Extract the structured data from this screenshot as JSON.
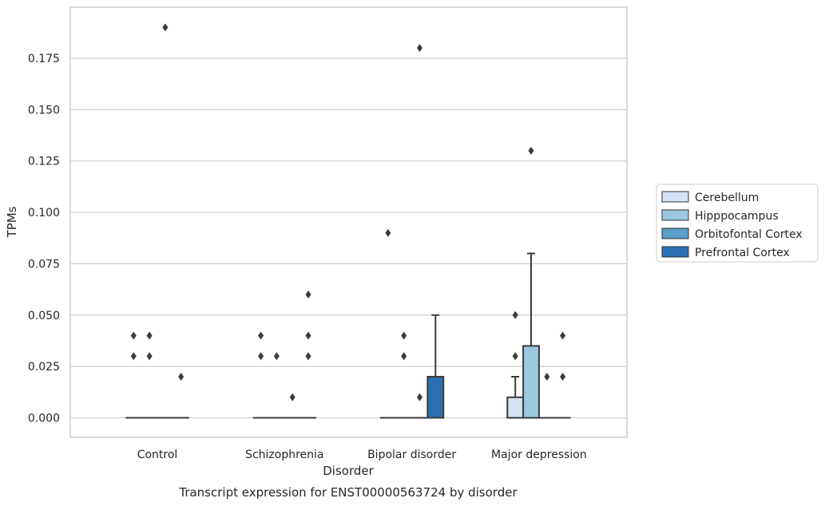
{
  "chart_data": {
    "type": "boxplot",
    "title": "",
    "caption": "Transcript expression for ENST00000563724 by disorder",
    "xlabel": "Disorder",
    "ylabel": "TPMs",
    "ylim": [
      -0.0095,
      0.1985
    ],
    "yticks": [
      0.0,
      0.025,
      0.05,
      0.075,
      0.1,
      0.125,
      0.15,
      0.175
    ],
    "ytick_labels": [
      "0.000",
      "0.025",
      "0.050",
      "0.075",
      "0.100",
      "0.125",
      "0.150",
      "0.175"
    ],
    "grid": "horizontal",
    "legend_position": "right",
    "categories": [
      "Control",
      "Schizophrenia",
      "Bipolar disorder",
      "Major depression"
    ],
    "series": [
      {
        "name": "Cerebellum",
        "color": "#d2e3f3",
        "boxes": [
          {
            "q1": 0,
            "median": 0,
            "q3": 0,
            "whislo": 0,
            "whishi": 0,
            "fliers": [
              0.03,
              0.04
            ]
          },
          {
            "q1": 0,
            "median": 0,
            "q3": 0,
            "whislo": 0,
            "whishi": 0,
            "fliers": [
              0.03,
              0.04
            ]
          },
          {
            "q1": 0,
            "median": 0,
            "q3": 0,
            "whislo": 0,
            "whishi": 0,
            "fliers": [
              0.09
            ]
          },
          {
            "q1": 0,
            "median": 0,
            "q3": 0.01,
            "whislo": 0,
            "whishi": 0.02,
            "fliers": [
              0.03,
              0.05
            ]
          }
        ]
      },
      {
        "name": "Hipppocampus",
        "color": "#9ac8e0",
        "boxes": [
          {
            "q1": 0,
            "median": 0,
            "q3": 0,
            "whislo": 0,
            "whishi": 0,
            "fliers": [
              0.03,
              0.04
            ]
          },
          {
            "q1": 0,
            "median": 0,
            "q3": 0,
            "whislo": 0,
            "whishi": 0,
            "fliers": [
              0.03
            ]
          },
          {
            "q1": 0,
            "median": 0,
            "q3": 0,
            "whislo": 0,
            "whishi": 0,
            "fliers": [
              0.03,
              0.04
            ]
          },
          {
            "q1": 0,
            "median": 0,
            "q3": 0.035,
            "whislo": 0,
            "whishi": 0.08,
            "fliers": [
              0.13
            ]
          }
        ]
      },
      {
        "name": "Orbitofontal Cortex",
        "color": "#5a9ec9",
        "boxes": [
          {
            "q1": 0,
            "median": 0,
            "q3": 0,
            "whislo": 0,
            "whishi": 0,
            "fliers": [
              0.19
            ]
          },
          {
            "q1": 0,
            "median": 0,
            "q3": 0,
            "whislo": 0,
            "whishi": 0,
            "fliers": [
              0.01
            ]
          },
          {
            "q1": 0,
            "median": 0,
            "q3": 0,
            "whislo": 0,
            "whishi": 0,
            "fliers": [
              0.01,
              0.18
            ]
          },
          {
            "q1": 0,
            "median": 0,
            "q3": 0,
            "whislo": 0,
            "whishi": 0,
            "fliers": [
              0.02
            ]
          }
        ]
      },
      {
        "name": "Prefrontal Cortex",
        "color": "#2c6fb0",
        "boxes": [
          {
            "q1": 0,
            "median": 0,
            "q3": 0,
            "whislo": 0,
            "whishi": 0,
            "fliers": [
              0.02
            ]
          },
          {
            "q1": 0,
            "median": 0,
            "q3": 0,
            "whislo": 0,
            "whishi": 0,
            "fliers": [
              0.03,
              0.04,
              0.06
            ]
          },
          {
            "q1": 0,
            "median": 0,
            "q3": 0.02,
            "whislo": 0,
            "whishi": 0.05,
            "fliers": []
          },
          {
            "q1": 0,
            "median": 0,
            "q3": 0,
            "whislo": 0,
            "whishi": 0,
            "fliers": [
              0.02,
              0.04
            ]
          }
        ]
      }
    ]
  }
}
